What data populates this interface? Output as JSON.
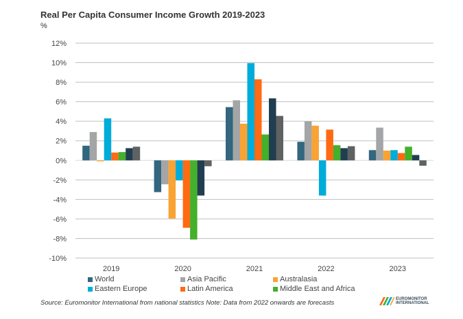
{
  "chart_data": {
    "type": "bar",
    "title": "Real Per Capita Consumer Income Growth 2019-2023",
    "ylabel": "%",
    "xlabel": "",
    "categories": [
      "2019",
      "2020",
      "2021",
      "2022",
      "2023"
    ],
    "ylim": [
      -10,
      12
    ],
    "yticks": [
      "-10%",
      "-8%",
      "-6%",
      "-4%",
      "-2%",
      "0%",
      "2%",
      "4%",
      "6%",
      "8%",
      "10%",
      "12%"
    ],
    "grid": true,
    "legend_position": "bottom",
    "series": [
      {
        "name": "World",
        "color": "#33667f",
        "values": [
          1.5,
          -3.25,
          5.45,
          1.9,
          1.05
        ]
      },
      {
        "name": "Asia Pacific",
        "color": "#a3a5a6",
        "values": [
          2.9,
          -2.45,
          6.15,
          4.0,
          3.35
        ]
      },
      {
        "name": "Australasia",
        "color": "#f9a335",
        "values": [
          -0.1,
          -5.95,
          3.75,
          3.55,
          1.0
        ]
      },
      {
        "name": "Eastern Europe",
        "color": "#00acd9",
        "values": [
          4.3,
          -2.05,
          9.95,
          -3.6,
          1.05
        ]
      },
      {
        "name": "Latin America",
        "color": "#ff6a13",
        "values": [
          0.8,
          -6.9,
          8.3,
          3.15,
          0.75
        ]
      },
      {
        "name": "Middle East and Africa",
        "color": "#44b02b",
        "values": [
          0.85,
          -8.1,
          2.65,
          1.55,
          1.4
        ]
      },
      {
        "color": "#213d50",
        "values": [
          1.25,
          -3.6,
          6.35,
          1.25,
          0.55
        ]
      },
      {
        "color": "#5f6262",
        "values": [
          1.4,
          -0.6,
          4.55,
          1.45,
          -0.55
        ]
      }
    ]
  },
  "source": "Source: Euromonitor International from national statistics Note: Data from 2022 onwards are forecasts",
  "logo": "EUROMONITOR INTERNATIONAL"
}
